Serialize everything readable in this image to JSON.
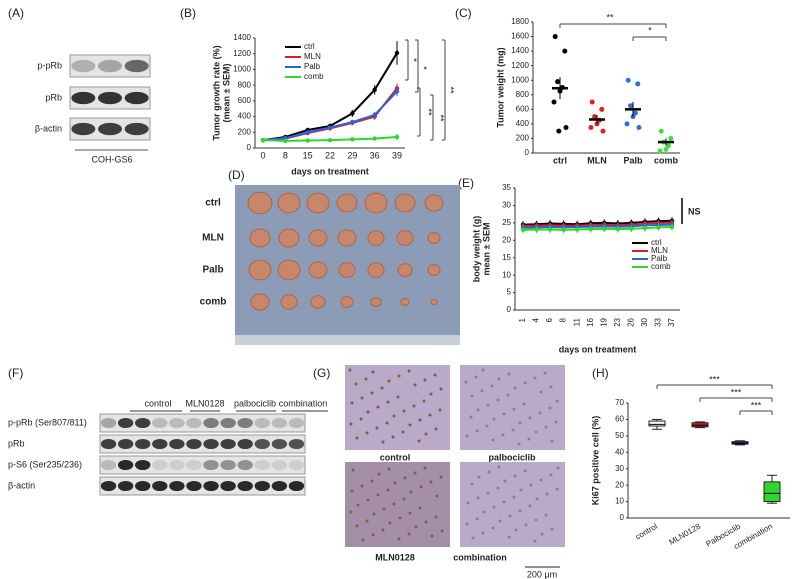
{
  "panel_labels": [
    "(A)",
    "(B)",
    "(C)",
    "(D)",
    "(E)",
    "(F)",
    "(G)",
    "(H)"
  ],
  "blot_a": {
    "rows": [
      "p-pRb",
      "pRb",
      "β-actin"
    ],
    "cell_line": "COH-GS6"
  },
  "photo_d": {
    "rows": [
      "ctrl",
      "MLN",
      "Palb",
      "comb"
    ]
  },
  "blot_f": {
    "groups": [
      "control",
      "MLN0128",
      "palbociclib",
      "combination"
    ],
    "rows": [
      "p-pRb (Ser807/811)",
      "pRb",
      "p-S6 (Ser235/236)",
      "β-actin"
    ]
  },
  "ihc_g": {
    "labels": [
      "control",
      "palbociclib",
      "MLN0128",
      "combination"
    ],
    "scale_bar": "200 μm"
  },
  "chart_data": [
    {
      "type": "line",
      "ylabel": [
        "Tumor growth rate (%)",
        "(mean ± SEM)"
      ],
      "xlabel": "days on treatment",
      "categories": [
        "0",
        "8",
        "15",
        "22",
        "29",
        "36",
        "39"
      ],
      "ylim": [
        0,
        1400
      ],
      "yticks": [
        0,
        200,
        400,
        600,
        800,
        1000,
        1200,
        1400
      ],
      "series": [
        {
          "name": "ctrl",
          "color": "#000000",
          "values": [
            100,
            140,
            230,
            280,
            440,
            740,
            1210
          ],
          "errors": [
            15,
            20,
            25,
            30,
            45,
            60,
            150
          ]
        },
        {
          "name": "MLN",
          "color": "#d42020",
          "values": [
            100,
            120,
            190,
            250,
            320,
            400,
            760
          ],
          "errors": [
            10,
            15,
            20,
            25,
            30,
            40,
            60
          ]
        },
        {
          "name": "Palb",
          "color": "#2e62d8",
          "values": [
            100,
            125,
            200,
            260,
            330,
            420,
            720
          ],
          "errors": [
            10,
            15,
            20,
            25,
            30,
            40,
            60
          ]
        },
        {
          "name": "comb",
          "color": "#2fd62f",
          "values": [
            100,
            90,
            95,
            100,
            110,
            120,
            140
          ],
          "errors": [
            10,
            10,
            10,
            15,
            15,
            20,
            40
          ]
        }
      ],
      "annotations": [
        "*",
        "*",
        "**",
        "**",
        "**"
      ]
    },
    {
      "type": "dot",
      "ylabel": [
        "Tumor weight (mg)"
      ],
      "categories": [
        "ctrl",
        "MLN",
        "Palb",
        "comb"
      ],
      "colors": [
        "#000000",
        "#e0201b",
        "#2e6fd8",
        "#3fdc3f"
      ],
      "ylim": [
        0,
        1800
      ],
      "yticks": [
        0,
        200,
        400,
        600,
        800,
        1000,
        1200,
        1400,
        1600,
        1800
      ],
      "points": [
        [
          1600,
          1400,
          980,
          900,
          850,
          700,
          350,
          300
        ],
        [
          700,
          600,
          500,
          450,
          400,
          350,
          300
        ],
        [
          1000,
          950,
          650,
          550,
          500,
          400,
          350
        ],
        [
          300,
          200,
          150,
          100,
          50,
          30
        ]
      ],
      "means": [
        890,
        460,
        600,
        150
      ],
      "sem": [
        150,
        60,
        100,
        50
      ],
      "annotations": [
        "**",
        "*"
      ]
    },
    {
      "type": "line",
      "ylabel": [
        "body weight (g)",
        "mean ± SEM"
      ],
      "xlabel": "days on treatment",
      "categories": [
        "1",
        "4",
        "6",
        "8",
        "11",
        "16",
        "19",
        "23",
        "26",
        "30",
        "33",
        "37"
      ],
      "ylim": [
        0,
        35
      ],
      "yticks": [
        0,
        5,
        10,
        15,
        20,
        25,
        30,
        35
      ],
      "series": [
        {
          "name": "ctrl",
          "color": "#000000",
          "values": [
            24.5,
            24.6,
            24.8,
            24.7,
            24.6,
            24.9,
            25,
            24.8,
            25,
            25.3,
            25.5,
            25.6
          ],
          "errors": [
            1,
            1,
            1,
            1,
            1,
            1,
            1,
            1,
            1,
            1,
            1,
            1
          ]
        },
        {
          "name": "MLN",
          "color": "#d42020",
          "values": [
            24.1,
            24.2,
            24.3,
            24.2,
            24.2,
            24.4,
            24.5,
            24.3,
            24.5,
            24.8,
            25,
            25
          ],
          "errors": [
            1,
            1,
            1,
            1,
            1,
            1,
            1,
            1,
            1,
            1,
            1,
            1
          ]
        },
        {
          "name": "Palb",
          "color": "#2e62d8",
          "values": [
            23.6,
            23.7,
            23.8,
            23.7,
            23.8,
            23.9,
            24,
            23.9,
            24,
            24.3,
            24.4,
            24.5
          ],
          "errors": [
            1,
            1,
            1,
            1,
            1,
            1,
            1,
            1,
            1,
            1,
            1,
            1
          ]
        },
        {
          "name": "comb",
          "color": "#2fd62f",
          "values": [
            23,
            23.1,
            23.1,
            23,
            23.1,
            23.2,
            23.3,
            23.2,
            23.3,
            23.5,
            23.7,
            23.8
          ],
          "errors": [
            1,
            1,
            1,
            1,
            1,
            1,
            1,
            1,
            1,
            1,
            1,
            1
          ]
        }
      ],
      "annotations": [
        "NS"
      ]
    },
    {
      "type": "box",
      "ylabel": [
        "Ki67 positive cell (%)"
      ],
      "categories": [
        "control",
        "MLN0128",
        "Palbociclib",
        "combination"
      ],
      "colors": [
        "#ffffff",
        "#d42020",
        "#1f2f9a",
        "#2fd62f"
      ],
      "ylim": [
        0,
        70
      ],
      "yticks": [
        0,
        10,
        20,
        30,
        40,
        50,
        60,
        70
      ],
      "min": [
        54,
        55,
        44.5,
        9
      ],
      "q1": [
        56,
        55.5,
        45,
        10
      ],
      "median": [
        57,
        56.5,
        45.5,
        15
      ],
      "q3": [
        59,
        58,
        46.5,
        22
      ],
      "max": [
        60,
        58.5,
        47,
        26
      ],
      "annotations": [
        "***",
        "***",
        "***"
      ]
    }
  ]
}
